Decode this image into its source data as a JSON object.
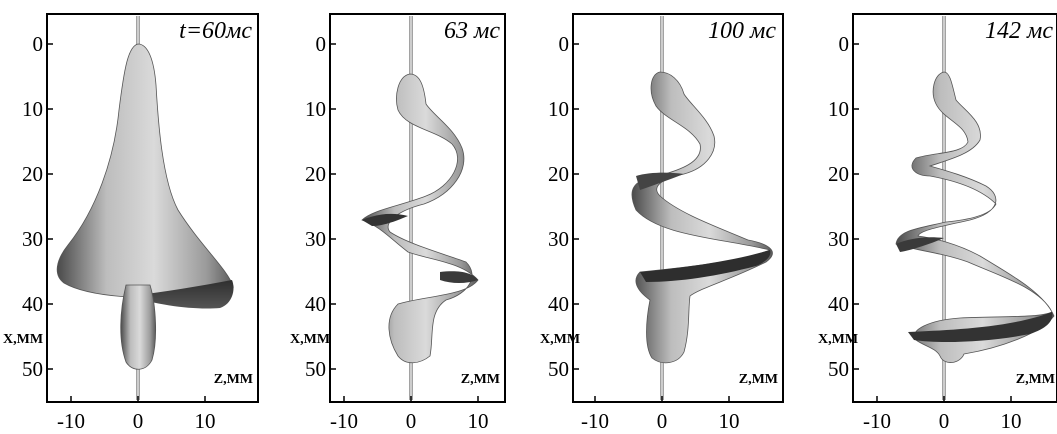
{
  "figure": {
    "axis_x_label": "X,MM",
    "axis_z_label": "Z,MM",
    "y_ticks": [
      "0",
      "10",
      "20",
      "30",
      "40",
      "50"
    ],
    "x_ticks": [
      "-10",
      "0",
      "10"
    ],
    "panels": [
      {
        "time_label": "t=60мс"
      },
      {
        "time_label": "63 мс"
      },
      {
        "time_label": "100 мс"
      },
      {
        "time_label": "142 мс"
      }
    ],
    "colors": {
      "frame": "#000000",
      "surface_light": "#d4d4d4",
      "surface_mid": "#9b9b9b",
      "surface_dark": "#3c3c3c",
      "rod": "#bdbdbd"
    }
  }
}
